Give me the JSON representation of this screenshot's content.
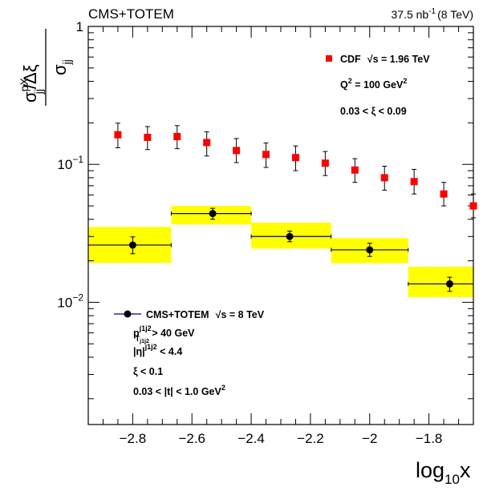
{
  "header": {
    "experiment": "CMS+TOTEM",
    "lumi_value": "37.5 nb",
    "lumi_exp": "-1",
    "lumi_suffix": "(8 TeV)"
  },
  "chart_data": {
    "type": "scatter",
    "title": "",
    "xlim": [
      -2.95,
      -1.65
    ],
    "ylim": [
      0.0013,
      1
    ],
    "yscale": "log",
    "grid": false,
    "legend_placement": "top-right and bottom-left",
    "xticks": [
      -2.8,
      -2.6,
      -2.4,
      -2.2,
      -2,
      -1.8
    ],
    "xtick_labels": [
      "−2.8",
      "−2.6",
      "−2.4",
      "−2.2",
      "−2",
      "−1.8"
    ],
    "yticks": [
      {
        "value": 1,
        "base": "",
        "exp": "",
        "mant": "1"
      },
      {
        "value": 0.1,
        "base": "10",
        "exp": "−1",
        "mant": ""
      },
      {
        "value": 0.01,
        "base": "10",
        "exp": "−2",
        "mant": ""
      }
    ],
    "xlabel": {
      "base": "log",
      "sub": "10",
      "tail": "x"
    },
    "ylabel": {
      "num_sigma": "σ",
      "num_sup": "pX",
      "num_sub": "jj",
      "num_tail": "/Δξ",
      "den_sigma": "σ",
      "den_sub": "jj"
    },
    "series": [
      {
        "name": "CDF",
        "color": "#ff0000",
        "marker": "square",
        "x": [
          -2.85,
          -2.75,
          -2.65,
          -2.55,
          -2.45,
          -2.35,
          -2.25,
          -2.15,
          -2.05,
          -1.95,
          -1.85,
          -1.75,
          -1.65
        ],
        "y": [
          0.164,
          0.157,
          0.159,
          0.144,
          0.126,
          0.118,
          0.112,
          0.102,
          0.091,
          0.08,
          0.075,
          0.061,
          0.05
        ],
        "y_lo": [
          0.132,
          0.128,
          0.13,
          0.115,
          0.103,
          0.095,
          0.09,
          0.083,
          0.074,
          0.065,
          0.061,
          0.05,
          0.041
        ],
        "y_hi": [
          0.199,
          0.188,
          0.191,
          0.172,
          0.154,
          0.143,
          0.136,
          0.124,
          0.11,
          0.097,
          0.092,
          0.074,
          0.061
        ]
      },
      {
        "name": "CMS+TOTEM",
        "color": "#000000",
        "marker": "circle",
        "band_color": "#ffff00",
        "x": [
          -2.8,
          -2.53,
          -2.27,
          -2.0,
          -1.73
        ],
        "x_lo": [
          -2.95,
          -2.67,
          -2.4,
          -2.13,
          -1.87
        ],
        "x_hi": [
          -2.67,
          -2.4,
          -2.13,
          -1.87,
          -1.6
        ],
        "y": [
          0.026,
          0.044,
          0.03,
          0.024,
          0.0136
        ],
        "y_lo": [
          0.0225,
          0.04,
          0.0275,
          0.0215,
          0.012
        ],
        "y_hi": [
          0.0298,
          0.048,
          0.0328,
          0.0268,
          0.0152
        ],
        "band_lo": [
          0.0193,
          0.0367,
          0.0245,
          0.0192,
          0.0109
        ],
        "band_hi": [
          0.0352,
          0.05,
          0.0378,
          0.0292,
          0.0181
        ]
      }
    ],
    "legend_cdf": {
      "label": "CDF",
      "sqrt_s": "√s = 1.96 TeV",
      "q2_base": "Q",
      "q2_exp": "2",
      "q2_tail": " = 100 GeV",
      "q2_unit_exp": "2",
      "xi_range": "0.03 < ξ < 0.09"
    },
    "legend_cms": {
      "label": "CMS+TOTEM",
      "sqrt_s": "√s = 8 TeV",
      "pt_base": "p",
      "pt_sup": "j1j2",
      "pt_sub": "T",
      "pt_sub2": "j1j2",
      "pt_tail": " > 40 GeV",
      "eta_base": "|η|",
      "eta_sup": "j1j2",
      "eta_tail": " < 4.4",
      "xi_cut": "ξ < 0.1",
      "t_range": "0.03 < |t| < 1.0 GeV",
      "t_exp": "2"
    }
  }
}
